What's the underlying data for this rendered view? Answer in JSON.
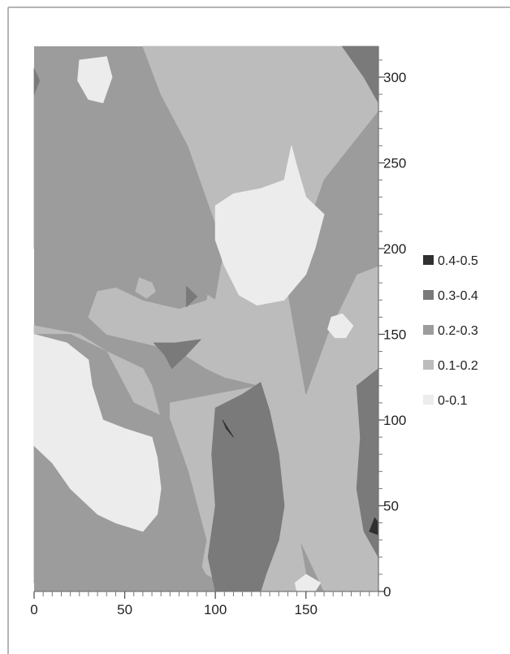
{
  "chart_data": {
    "type": "heatmap",
    "x_ticks": [
      0,
      50,
      100,
      150
    ],
    "y_ticks": [
      0,
      50,
      100,
      150,
      200,
      250,
      300
    ],
    "xlim": [
      0,
      190
    ],
    "ylim": [
      0,
      318
    ],
    "y_axis_side": "right",
    "legend_position": "right",
    "legend": [
      {
        "label": "0.4-0.5",
        "color": "#303030"
      },
      {
        "label": "0.3-0.4",
        "color": "#7a7a7a"
      },
      {
        "label": "0.2-0.3",
        "color": "#9c9c9c"
      },
      {
        "label": "0.1-0.2",
        "color": "#bcbcbc"
      },
      {
        "label": "0-0.1",
        "color": "#ececec"
      }
    ],
    "background_class": "0.2-0.3",
    "regions": [
      {
        "class": "0.1-0.2",
        "points": [
          [
            60,
            318
          ],
          [
            190,
            318
          ],
          [
            190,
            0
          ],
          [
            160,
            0
          ],
          [
            140,
            45
          ],
          [
            130,
            95
          ],
          [
            125,
            120
          ],
          [
            105,
            125
          ],
          [
            95,
            130
          ],
          [
            80,
            140
          ],
          [
            60,
            145
          ],
          [
            40,
            150
          ],
          [
            30,
            160
          ],
          [
            35,
            175
          ],
          [
            60,
            180
          ],
          [
            85,
            180
          ],
          [
            100,
            170
          ],
          [
            105,
            200
          ],
          [
            95,
            230
          ],
          [
            85,
            260
          ],
          [
            70,
            290
          ]
        ]
      },
      {
        "class": "0.1-0.2",
        "points": [
          [
            0,
            155
          ],
          [
            25,
            150
          ],
          [
            40,
            140
          ],
          [
            60,
            130
          ],
          [
            65,
            120
          ],
          [
            70,
            100
          ],
          [
            65,
            80
          ],
          [
            62,
            60
          ],
          [
            55,
            40
          ],
          [
            40,
            30
          ],
          [
            25,
            25
          ],
          [
            10,
            15
          ],
          [
            0,
            10
          ]
        ]
      },
      {
        "class": "0.1-0.2",
        "points": [
          [
            75,
            110
          ],
          [
            100,
            115
          ],
          [
            125,
            120
          ],
          [
            135,
            80
          ],
          [
            140,
            60
          ],
          [
            145,
            40
          ],
          [
            150,
            10
          ],
          [
            150,
            0
          ],
          [
            115,
            0
          ],
          [
            95,
            10
          ],
          [
            85,
            30
          ],
          [
            80,
            60
          ],
          [
            75,
            90
          ]
        ]
      },
      {
        "class": "0.2-0.3",
        "points": [
          [
            0,
            290
          ],
          [
            10,
            285
          ],
          [
            30,
            282
          ],
          [
            50,
            278
          ],
          [
            60,
            270
          ],
          [
            70,
            255
          ],
          [
            80,
            230
          ],
          [
            90,
            220
          ],
          [
            100,
            200
          ],
          [
            95,
            170
          ],
          [
            80,
            165
          ],
          [
            60,
            170
          ],
          [
            40,
            180
          ],
          [
            20,
            190
          ],
          [
            0,
            200
          ]
        ]
      },
      {
        "class": "0.2-0.3",
        "points": [
          [
            0,
            150
          ],
          [
            0,
            5
          ],
          [
            20,
            0
          ],
          [
            90,
            0
          ],
          [
            95,
            30
          ],
          [
            85,
            70
          ],
          [
            75,
            100
          ],
          [
            55,
            110
          ],
          [
            40,
            140
          ],
          [
            20,
            150
          ]
        ]
      },
      {
        "class": "0.2-0.3",
        "points": [
          [
            150,
            115
          ],
          [
            162,
            150
          ],
          [
            178,
            185
          ],
          [
            190,
            190
          ],
          [
            190,
            280
          ],
          [
            175,
            260
          ],
          [
            160,
            240
          ],
          [
            150,
            210
          ],
          [
            140,
            175
          ]
        ]
      },
      {
        "class": "0.0-0.1",
        "points": [
          [
            0,
            150
          ],
          [
            18,
            145
          ],
          [
            30,
            135
          ],
          [
            32,
            120
          ],
          [
            38,
            100
          ],
          [
            50,
            95
          ],
          [
            65,
            90
          ],
          [
            68,
            78
          ],
          [
            70,
            60
          ],
          [
            68,
            45
          ],
          [
            60,
            35
          ],
          [
            45,
            40
          ],
          [
            35,
            45
          ],
          [
            20,
            60
          ],
          [
            10,
            75
          ],
          [
            0,
            85
          ]
        ]
      },
      {
        "class": "0.0-0.1",
        "points": [
          [
            100,
            225
          ],
          [
            110,
            232
          ],
          [
            125,
            235
          ],
          [
            138,
            240
          ],
          [
            142,
            260
          ],
          [
            145,
            248
          ],
          [
            150,
            230
          ],
          [
            160,
            220
          ],
          [
            155,
            200
          ],
          [
            150,
            185
          ],
          [
            138,
            170
          ],
          [
            123,
            167
          ],
          [
            113,
            173
          ],
          [
            105,
            190
          ],
          [
            100,
            205
          ]
        ]
      },
      {
        "class": "0.0-0.1",
        "points": [
          [
            164,
            160
          ],
          [
            170,
            162
          ],
          [
            176,
            155
          ],
          [
            172,
            148
          ],
          [
            166,
            148
          ],
          [
            162,
            153
          ]
        ]
      },
      {
        "class": "0.0-0.1",
        "points": [
          [
            25,
            310
          ],
          [
            40,
            312
          ],
          [
            43,
            300
          ],
          [
            38,
            285
          ],
          [
            30,
            287
          ],
          [
            24,
            298
          ]
        ]
      },
      {
        "class": "0.0-0.1",
        "points": [
          [
            145,
            0
          ],
          [
            155,
            0
          ],
          [
            158,
            5
          ],
          [
            150,
            10
          ],
          [
            144,
            5
          ]
        ]
      },
      {
        "class": "0.1-0.2",
        "points": [
          [
            58,
            183
          ],
          [
            65,
            180
          ],
          [
            67,
            175
          ],
          [
            62,
            171
          ],
          [
            56,
            175
          ]
        ]
      },
      {
        "class": "0.3-0.4",
        "points": [
          [
            100,
            107
          ],
          [
            115,
            115
          ],
          [
            125,
            122
          ],
          [
            130,
            105
          ],
          [
            135,
            80
          ],
          [
            138,
            50
          ],
          [
            135,
            30
          ],
          [
            128,
            10
          ],
          [
            125,
            0
          ],
          [
            100,
            0
          ],
          [
            96,
            20
          ],
          [
            100,
            50
          ],
          [
            98,
            80
          ]
        ]
      },
      {
        "class": "0.3-0.4",
        "points": [
          [
            178,
            120
          ],
          [
            190,
            130
          ],
          [
            190,
            20
          ],
          [
            182,
            35
          ],
          [
            178,
            60
          ],
          [
            180,
            90
          ]
        ]
      },
      {
        "class": "0.3-0.4",
        "points": [
          [
            170,
            318
          ],
          [
            190,
            318
          ],
          [
            190,
            285
          ],
          [
            182,
            300
          ]
        ]
      },
      {
        "class": "0.3-0.4",
        "points": [
          [
            0,
            290
          ],
          [
            3,
            298
          ],
          [
            0,
            305
          ]
        ]
      },
      {
        "class": "0.3-0.4",
        "points": [
          [
            66,
            145
          ],
          [
            78,
            145
          ],
          [
            92,
            147
          ],
          [
            84,
            138
          ],
          [
            76,
            130
          ],
          [
            72,
            138
          ]
        ]
      },
      {
        "class": "0.3-0.4",
        "points": [
          [
            84,
            178
          ],
          [
            90,
            172
          ],
          [
            84,
            166
          ]
        ]
      },
      {
        "class": "0.4-0.5",
        "points": [
          [
            104,
            100
          ],
          [
            110,
            90
          ],
          [
            106,
            95
          ]
        ]
      },
      {
        "class": "0.4-0.5",
        "points": [
          [
            188,
            43
          ],
          [
            190,
            40
          ],
          [
            190,
            33
          ],
          [
            185,
            35
          ]
        ]
      }
    ]
  }
}
